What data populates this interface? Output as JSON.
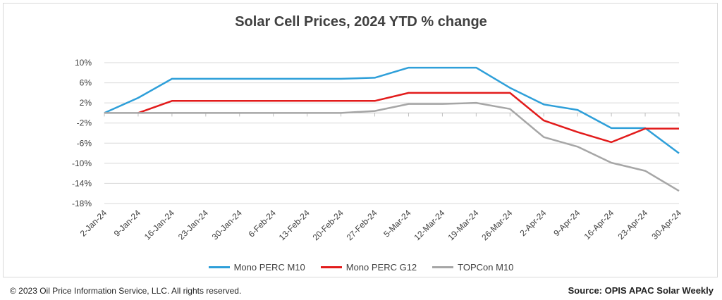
{
  "chart_data": {
    "type": "line",
    "title": "Solar Cell Prices, 2024 YTD % change",
    "xlabel": "",
    "ylabel": "",
    "ylim": [
      -18,
      10
    ],
    "yticks": [
      "10%",
      "6%",
      "2%",
      "-2%",
      "-6%",
      "-10%",
      "-14%",
      "-18%"
    ],
    "ytick_values": [
      10,
      6,
      2,
      -2,
      -6,
      -10,
      -14,
      -18
    ],
    "grid": "horizontal",
    "legend_position": "bottom",
    "categories": [
      "2-Jan-24",
      "9-Jan-24",
      "16-Jan-24",
      "23-Jan-24",
      "30-Jan-24",
      "6-Feb-24",
      "13-Feb-24",
      "20-Feb-24",
      "27-Feb-24",
      "5-Mar-24",
      "12-Mar-24",
      "19-Mar-24",
      "26-Mar-24",
      "2-Apr-24",
      "9-Apr-24",
      "16-Apr-24",
      "23-Apr-24",
      "30-Apr-24"
    ],
    "series": [
      {
        "name": "Mono PERC M10",
        "color": "#2e9fd9",
        "values": [
          0,
          3.0,
          6.8,
          6.8,
          6.8,
          6.8,
          6.8,
          6.8,
          7.0,
          9.0,
          9.0,
          9.0,
          5.0,
          1.7,
          0.6,
          -3.0,
          -3.0,
          -8.0
        ]
      },
      {
        "name": "Mono PERC G12",
        "color": "#e21b1b",
        "values": [
          null,
          0,
          2.4,
          2.4,
          2.4,
          2.4,
          2.4,
          2.4,
          2.4,
          4.0,
          4.0,
          4.0,
          4.0,
          -1.5,
          -3.8,
          -5.8,
          -3.1,
          -3.1
        ]
      },
      {
        "name": "TOPCon M10",
        "color": "#a6a6a6",
        "values": [
          0,
          0,
          0,
          0,
          0,
          0,
          0,
          0,
          0.4,
          1.8,
          1.8,
          2.0,
          0.8,
          -4.8,
          -6.7,
          -9.9,
          -11.5,
          -15.5
        ]
      }
    ]
  },
  "footer": {
    "copyright": "© 2023 Oil Price Information Service, LLC. All rights reserved.",
    "source": "Source: OPIS APAC Solar Weekly"
  }
}
